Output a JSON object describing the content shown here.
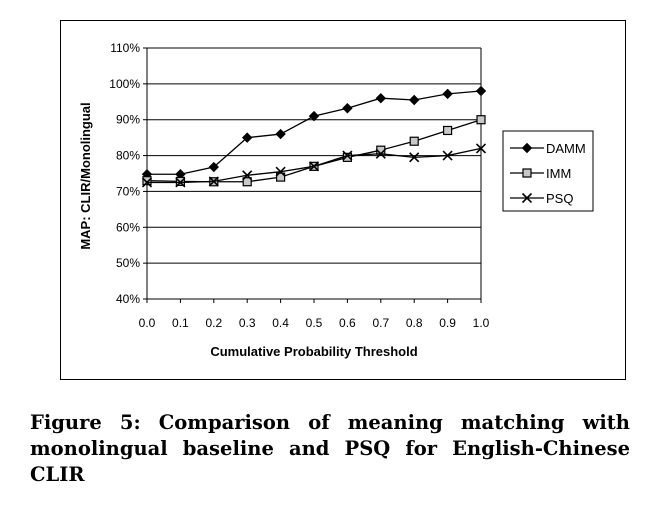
{
  "caption": "Figure 5: Comparison of meaning matching with monolingual baseline and PSQ for English-Chinese CLIR",
  "chart_data": {
    "type": "line",
    "title": "",
    "xlabel": "Cumulative Probability Threshold",
    "ylabel": "MAP: CLIR/Monolingual",
    "x": [
      0.0,
      0.1,
      0.2,
      0.3,
      0.4,
      0.5,
      0.6,
      0.7,
      0.8,
      0.9,
      1.0
    ],
    "x_tick_labels": [
      "0.0",
      "0.1",
      "0.2",
      "0.3",
      "0.4",
      "0.5",
      "0.6",
      "0.7",
      "0.8",
      "0.9",
      "1.0"
    ],
    "xlim": [
      0.0,
      1.0
    ],
    "ylim": [
      40,
      110
    ],
    "y_ticks": [
      40,
      50,
      60,
      70,
      80,
      90,
      100,
      110
    ],
    "y_tick_labels": [
      "40%",
      "50%",
      "60%",
      "70%",
      "80%",
      "90%",
      "100%",
      "110%"
    ],
    "grid": "horizontal",
    "legend_position": "right",
    "series": [
      {
        "name": "DAMM",
        "marker": "diamond",
        "color": "#000000",
        "values": [
          74.8,
          74.8,
          76.8,
          85.0,
          86.0,
          91.0,
          93.2,
          96.0,
          95.5,
          97.2,
          98.0
        ]
      },
      {
        "name": "IMM",
        "marker": "square",
        "color": "#000000",
        "values": [
          73.0,
          72.8,
          72.7,
          72.7,
          74.0,
          77.0,
          79.5,
          81.5,
          84.0,
          87.0,
          90.0
        ]
      },
      {
        "name": "PSQ",
        "marker": "x",
        "color": "#000000",
        "values": [
          72.5,
          72.5,
          72.8,
          74.5,
          75.5,
          77.0,
          80.0,
          80.5,
          79.5,
          80.0,
          82.0
        ]
      }
    ]
  }
}
